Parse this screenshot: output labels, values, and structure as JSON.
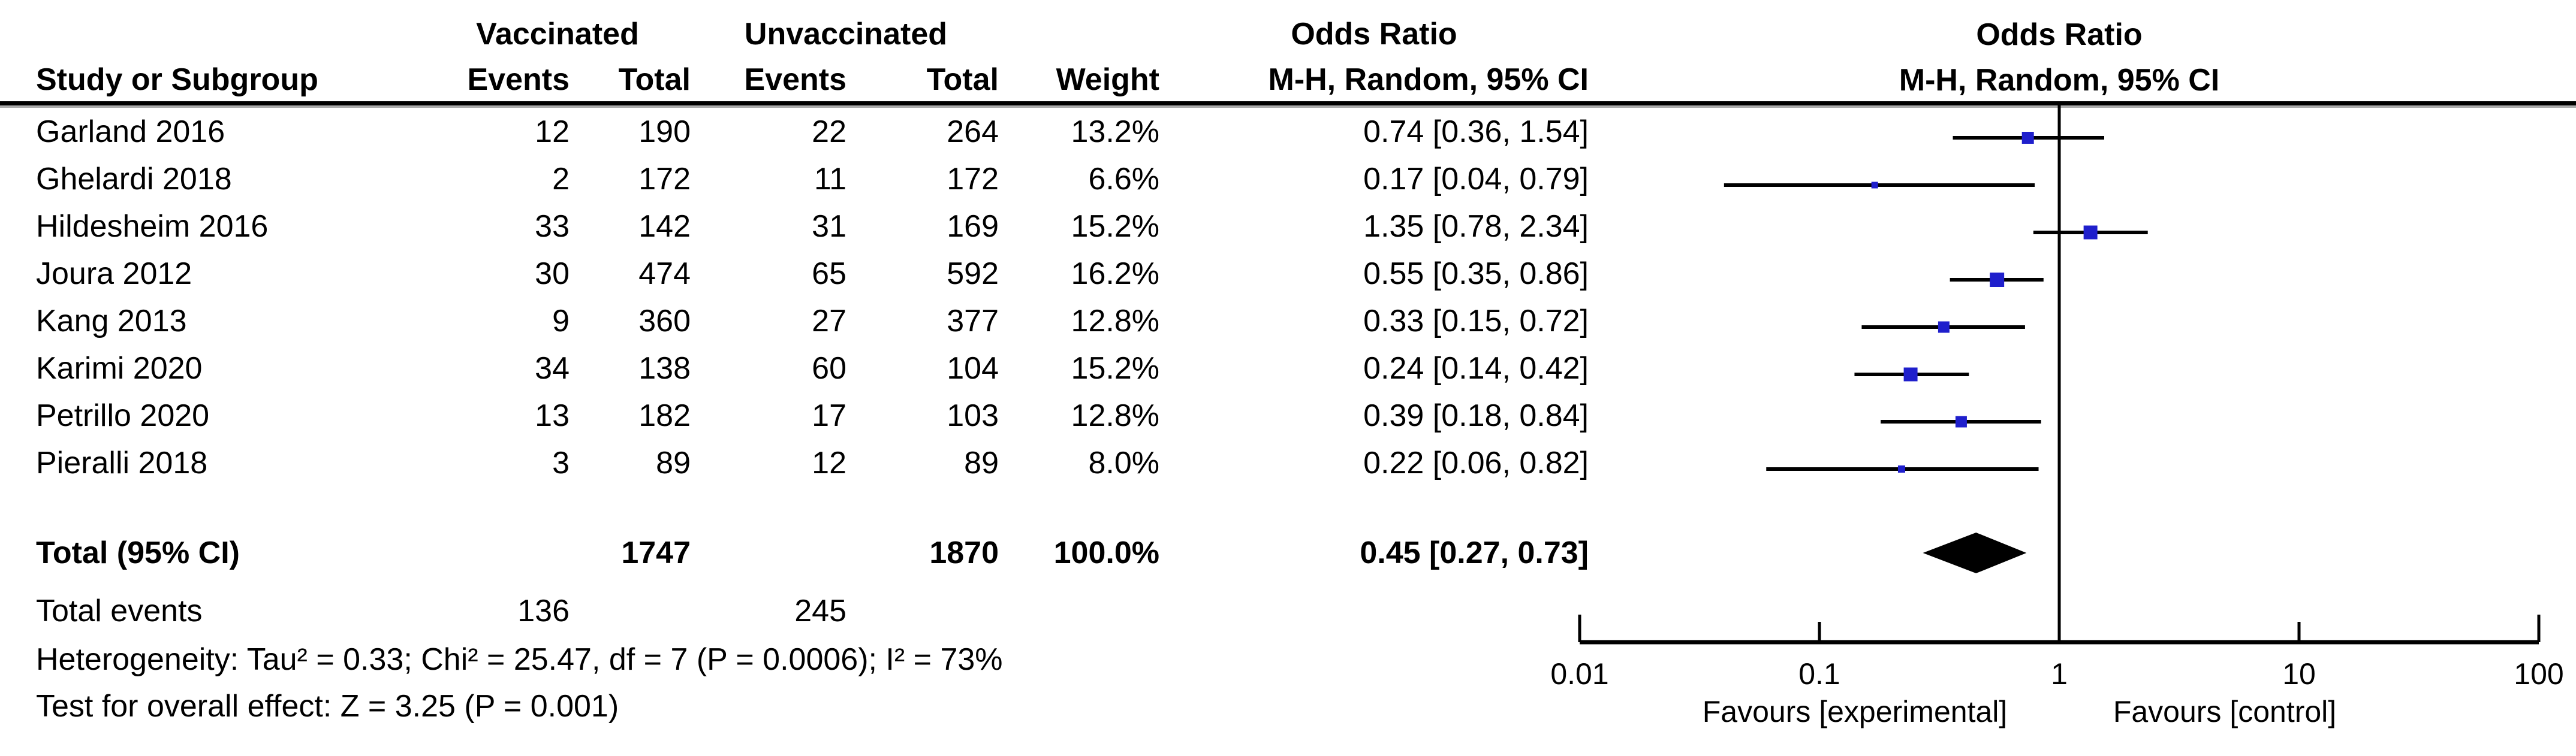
{
  "table": {
    "group1_header": "Vaccinated",
    "group2_header": "Unvaccinated",
    "or_text_header_line1": "Odds Ratio",
    "col_headers": [
      "Study or Subgroup",
      "Events",
      "Total",
      "Events",
      "Total",
      "Weight"
    ],
    "or_col_header": "M-H, Random, 95% CI",
    "rows": [
      [
        "Garland 2016",
        "12",
        "190",
        "22",
        "264",
        "13.2%",
        "0.74 [0.36, 1.54]"
      ],
      [
        "Ghelardi 2018",
        "2",
        "172",
        "11",
        "172",
        "6.6%",
        "0.17 [0.04, 0.79]"
      ],
      [
        "Hildesheim 2016",
        "33",
        "142",
        "31",
        "169",
        "15.2%",
        "1.35 [0.78, 2.34]"
      ],
      [
        "Joura 2012",
        "30",
        "474",
        "65",
        "592",
        "16.2%",
        "0.55 [0.35, 0.86]"
      ],
      [
        "Kang 2013",
        "9",
        "360",
        "27",
        "377",
        "12.8%",
        "0.33 [0.15, 0.72]"
      ],
      [
        "Karimi 2020",
        "34",
        "138",
        "60",
        "104",
        "15.2%",
        "0.24 [0.14, 0.42]"
      ],
      [
        "Petrillo 2020",
        "13",
        "182",
        "17",
        "103",
        "12.8%",
        "0.39 [0.18, 0.84]"
      ],
      [
        "Pieralli 2018",
        "3",
        "89",
        "12",
        "89",
        "8.0%",
        "0.22 [0.06, 0.82]"
      ]
    ],
    "total_row": {
      "label": "Total (95% CI)",
      "vacc_total": "1747",
      "unvacc_total": "1870",
      "weight": "100.0%",
      "or_ci": "0.45 [0.27, 0.73]"
    },
    "total_events": {
      "label": "Total events",
      "vaccinated": "136",
      "unvaccinated": "245"
    },
    "footnote_heterogeneity": "Heterogeneity: Tau² = 0.33; Chi² = 25.47, df = 7 (P = 0.0006); I² = 73%",
    "footnote_overall_effect": "Test for overall effect: Z = 3.25 (P = 0.001)"
  },
  "chart_data": {
    "type": "scatter",
    "subtype": "forest-plot-odds-ratio",
    "title_line1": "Odds Ratio",
    "title_line2": "M-H, Random, 95% CI",
    "x_scale": "log10",
    "x_ticks": [
      0.01,
      0.1,
      1,
      10,
      100
    ],
    "x_tick_labels": [
      "0.01",
      "0.1",
      "1",
      "10",
      "100"
    ],
    "xlim": [
      0.01,
      100
    ],
    "reference_line": 1,
    "favours_left_label": "Favours [experimental]",
    "favours_right_label": "Favours [control]",
    "marker_color": "#1f1fcc",
    "line_color": "#000000",
    "studies": [
      {
        "name": "Garland 2016",
        "vacc_events": 12,
        "vacc_total": 190,
        "unvacc_events": 22,
        "unvacc_total": 264,
        "weight_pct": 13.2,
        "or": 0.74,
        "ci_low": 0.36,
        "ci_high": 1.54
      },
      {
        "name": "Ghelardi 2018",
        "vacc_events": 2,
        "vacc_total": 172,
        "unvacc_events": 11,
        "unvacc_total": 172,
        "weight_pct": 6.6,
        "or": 0.17,
        "ci_low": 0.04,
        "ci_high": 0.79
      },
      {
        "name": "Hildesheim 2016",
        "vacc_events": 33,
        "vacc_total": 142,
        "unvacc_events": 31,
        "unvacc_total": 169,
        "weight_pct": 15.2,
        "or": 1.35,
        "ci_low": 0.78,
        "ci_high": 2.34
      },
      {
        "name": "Joura 2012",
        "vacc_events": 30,
        "vacc_total": 474,
        "unvacc_events": 65,
        "unvacc_total": 592,
        "weight_pct": 16.2,
        "or": 0.55,
        "ci_low": 0.35,
        "ci_high": 0.86
      },
      {
        "name": "Kang 2013",
        "vacc_events": 9,
        "vacc_total": 360,
        "unvacc_events": 27,
        "unvacc_total": 377,
        "weight_pct": 12.8,
        "or": 0.33,
        "ci_low": 0.15,
        "ci_high": 0.72
      },
      {
        "name": "Karimi 2020",
        "vacc_events": 34,
        "vacc_total": 138,
        "unvacc_events": 60,
        "unvacc_total": 104,
        "weight_pct": 15.2,
        "or": 0.24,
        "ci_low": 0.14,
        "ci_high": 0.42
      },
      {
        "name": "Petrillo 2020",
        "vacc_events": 13,
        "vacc_total": 182,
        "unvacc_events": 17,
        "unvacc_total": 103,
        "weight_pct": 12.8,
        "or": 0.39,
        "ci_low": 0.18,
        "ci_high": 0.84
      },
      {
        "name": "Pieralli 2018",
        "vacc_events": 3,
        "vacc_total": 89,
        "unvacc_events": 12,
        "unvacc_total": 89,
        "weight_pct": 8.0,
        "or": 0.22,
        "ci_low": 0.06,
        "ci_high": 0.82
      }
    ],
    "total": {
      "label": "Total (95% CI)",
      "vacc_total": 1747,
      "unvacc_total": 1870,
      "weight_pct": 100.0,
      "or": 0.45,
      "ci_low": 0.27,
      "ci_high": 0.73
    },
    "total_events": {
      "vaccinated": 136,
      "unvaccinated": 245
    },
    "heterogeneity": "Heterogeneity: Tau² = 0.33; Chi² = 25.47, df = 7 (P = 0.0006); I² = 73%",
    "overall_effect_test": "Test for overall effect: Z = 3.25 (P = 0.001)"
  }
}
